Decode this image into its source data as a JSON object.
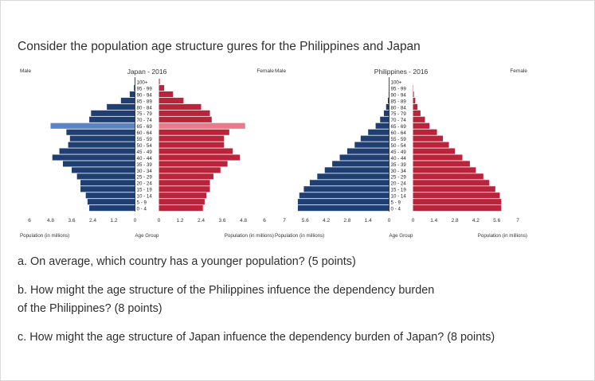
{
  "page": {
    "title": "Consider the population age structure  gures for the Philippines and Japan",
    "questions": {
      "a": "a. On average, which country has a younger population? (5 points)",
      "b_line1": "b. How might the age structure of the Philippines infuence the dependency burden",
      "b_line2": "of the Philippines? (8 points)",
      "c": "c. How might the age structure of Japan infuence the dependency burden of Japan? (8 points)"
    }
  },
  "chart_data": [
    {
      "type": "bar",
      "orientation": "horizontal-pyramid",
      "title": "Japan - 2016",
      "left_label": "Male",
      "right_label": "Female",
      "center_label": "Age Group",
      "left_axis_label": "Population (in millions)",
      "right_axis_label": "Population (in millions)",
      "left_ticks": [
        "6",
        "4.8",
        "3.6",
        "2.4",
        "1.2",
        "0"
      ],
      "right_ticks": [
        "0",
        "1.2",
        "2.4",
        "3.6",
        "4.8",
        "6"
      ],
      "xlim": [
        0,
        6
      ],
      "categories": [
        "100+",
        "95 - 99",
        "90 - 94",
        "85 - 89",
        "80 - 84",
        "75 - 79",
        "70 - 74",
        "65 - 69",
        "60 - 64",
        "55 - 59",
        "50 - 54",
        "45 - 49",
        "40 - 44",
        "35 - 39",
        "30 - 34",
        "25 - 29",
        "20 - 24",
        "15 - 19",
        "10 - 14",
        "5 - 9",
        "0 - 4"
      ],
      "series": [
        {
          "name": "Male",
          "color": "#1f3f73",
          "values": [
            0.01,
            0.06,
            0.3,
            0.8,
            1.6,
            2.5,
            2.6,
            4.8,
            3.9,
            3.7,
            3.8,
            4.3,
            4.7,
            4.1,
            3.6,
            3.3,
            3.1,
            3.1,
            2.8,
            2.7,
            2.6
          ]
        },
        {
          "name": "Female",
          "color": "#b9243a",
          "values": [
            0.05,
            0.3,
            0.8,
            1.4,
            2.4,
            2.9,
            3.0,
            4.9,
            4.0,
            3.7,
            3.7,
            4.2,
            4.6,
            3.9,
            3.5,
            3.1,
            2.9,
            2.9,
            2.7,
            2.6,
            2.5
          ]
        }
      ]
    },
    {
      "type": "bar",
      "orientation": "horizontal-pyramid",
      "title": "Philippines - 2016",
      "left_label": "Male",
      "right_label": "Female",
      "center_label": "Age Group",
      "left_axis_label": "Population (in millions)",
      "right_axis_label": "Population (in millions)",
      "left_ticks": [
        "7",
        "5.6",
        "4.2",
        "2.8",
        "1.4",
        "0"
      ],
      "right_ticks": [
        "0",
        "1.4",
        "2.8",
        "4.2",
        "5.6",
        "7"
      ],
      "xlim": [
        0,
        7
      ],
      "categories": [
        "100+",
        "95 - 99",
        "90 - 94",
        "85 - 89",
        "80 - 84",
        "75 - 79",
        "70 - 74",
        "65 - 69",
        "60 - 64",
        "55 - 59",
        "50 - 54",
        "45 - 49",
        "40 - 44",
        "35 - 39",
        "30 - 34",
        "25 - 29",
        "20 - 24",
        "15 - 19",
        "10 - 14",
        "5 - 9",
        "0 - 4"
      ],
      "series": [
        {
          "name": "Male",
          "color": "#1f3f73",
          "values": [
            0.0,
            0.01,
            0.03,
            0.08,
            0.2,
            0.35,
            0.6,
            0.9,
            1.4,
            1.9,
            2.3,
            2.8,
            3.3,
            3.8,
            4.3,
            4.8,
            5.3,
            5.7,
            6.0,
            6.1,
            6.1
          ]
        },
        {
          "name": "Female",
          "color": "#b9243a",
          "values": [
            0.0,
            0.02,
            0.06,
            0.15,
            0.3,
            0.5,
            0.8,
            1.1,
            1.6,
            2.0,
            2.4,
            2.8,
            3.3,
            3.8,
            4.2,
            4.7,
            5.1,
            5.5,
            5.8,
            5.9,
            5.9
          ]
        }
      ]
    }
  ]
}
